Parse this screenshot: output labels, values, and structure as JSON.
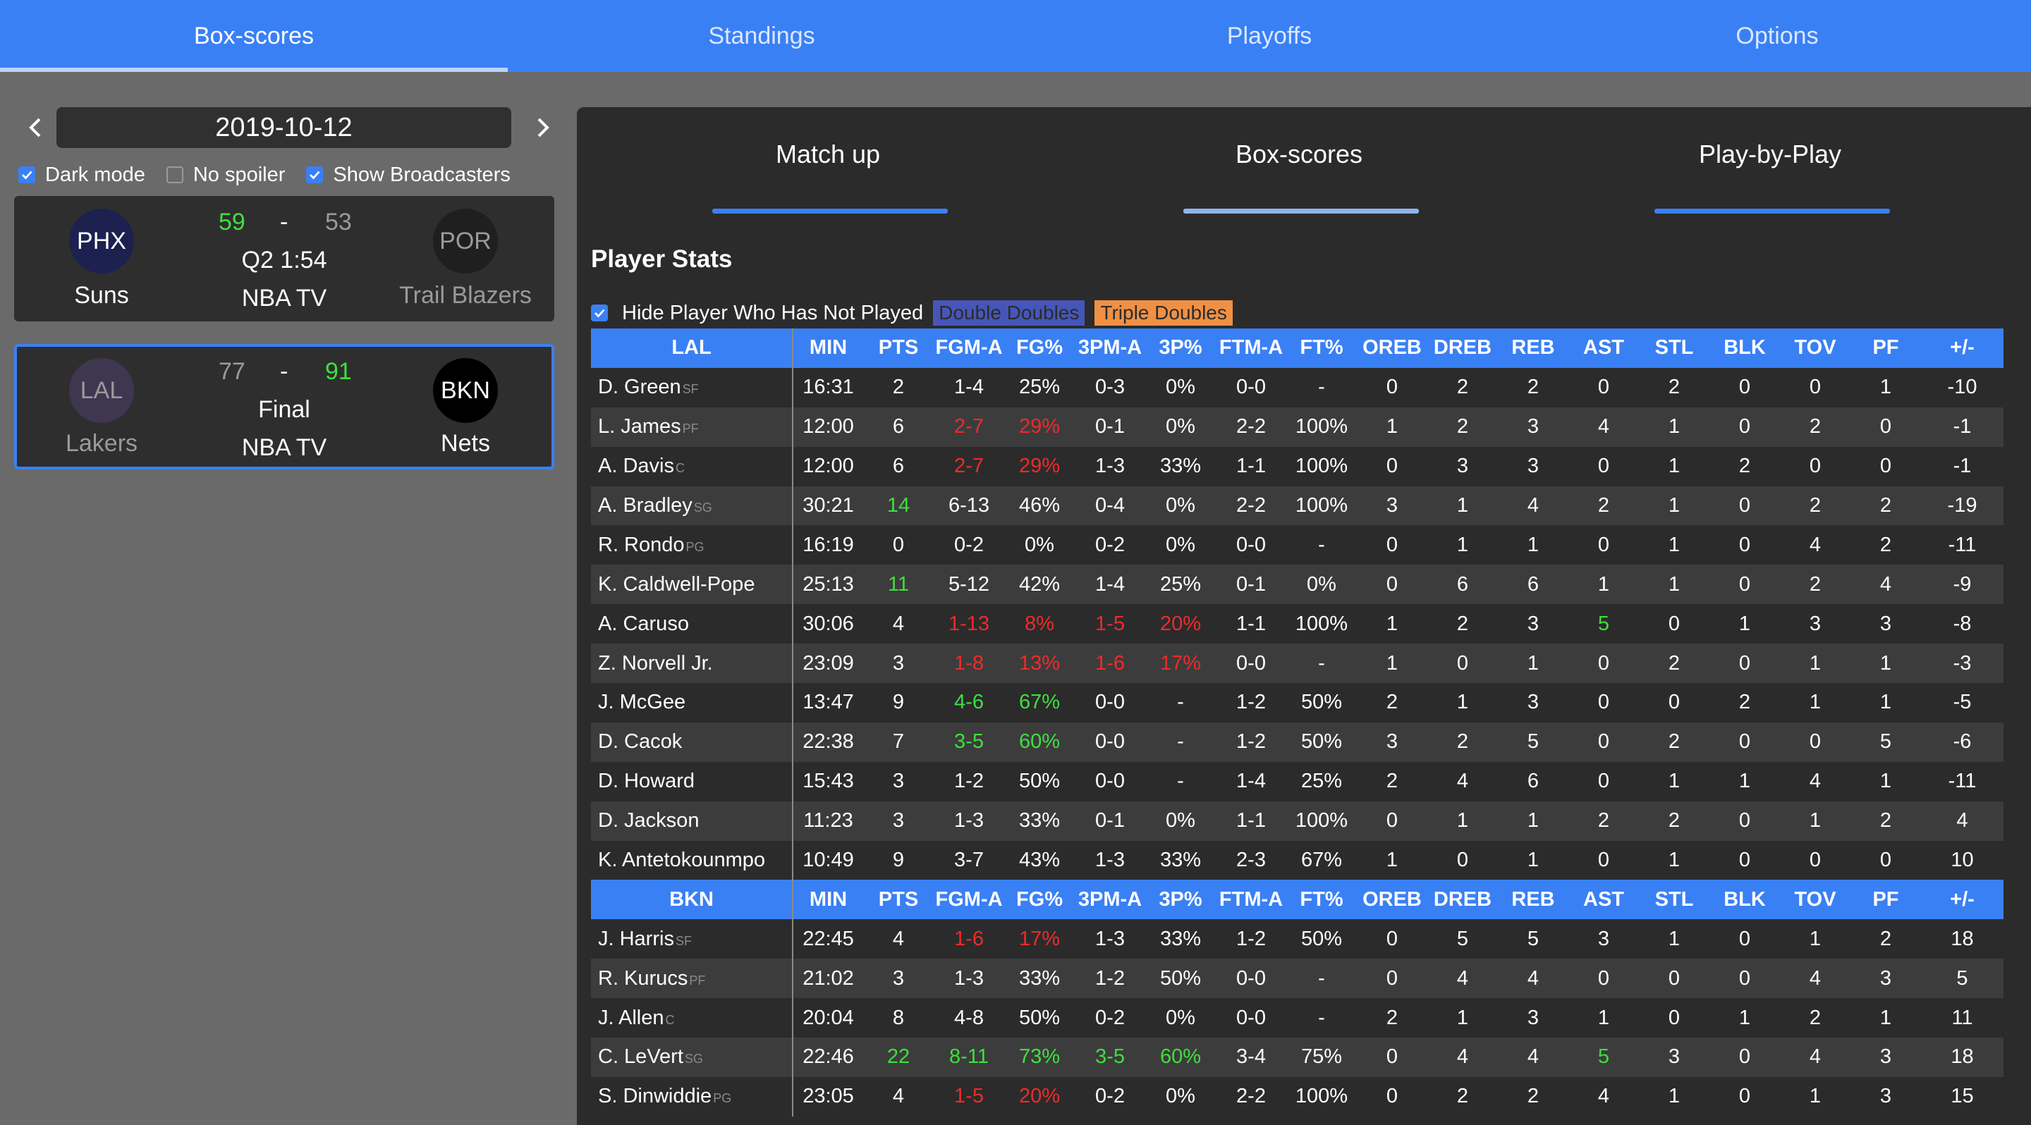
{
  "nav": {
    "tabs": [
      "Box-scores",
      "Standings",
      "Playoffs",
      "Options"
    ],
    "active": 0
  },
  "sidebar": {
    "date": "2019-10-12",
    "options": [
      {
        "label": "Dark mode",
        "checked": true
      },
      {
        "label": "No spoiler",
        "checked": false
      },
      {
        "label": "Show Broadcasters",
        "checked": true
      }
    ],
    "games": [
      {
        "home_abbr": "PHX",
        "home_name": "Suns",
        "home_score": "59",
        "home_logo_color": "#1c2150",
        "away_abbr": "POR",
        "away_name": "Trail Blazers",
        "away_score": "53",
        "away_logo_color": "#1f1f1f",
        "dash": "-",
        "status": "Q2 1:54",
        "broadcaster": "NBA TV",
        "selected": false
      },
      {
        "home_abbr": "LAL",
        "home_name": "Lakers",
        "home_score": "77",
        "home_logo_color": "#3f3650",
        "away_abbr": "BKN",
        "away_name": "Nets",
        "away_score": "91",
        "away_logo_color": "#000000",
        "dash": "-",
        "status": "Final",
        "broadcaster": "NBA TV",
        "selected": true
      }
    ]
  },
  "main": {
    "subtabs": [
      "Match up",
      "Box-scores",
      "Play-by-Play"
    ],
    "active_subtab": 1,
    "section_title": "Player Stats",
    "hide_label": "Hide Player Who Has Not Played",
    "hide_checked": true,
    "legend_double": "Double Doubles",
    "legend_triple": "Triple Doubles",
    "columns": [
      "MIN",
      "PTS",
      "FGM-A",
      "FG%",
      "3PM-A",
      "3P%",
      "FTM-A",
      "FT%",
      "OREB",
      "DREB",
      "REB",
      "AST",
      "STL",
      "BLK",
      "TOV",
      "PF",
      "+/-"
    ],
    "teams": [
      {
        "abbr": "LAL",
        "players": [
          {
            "name": "D. Green",
            "pos": "SF",
            "stats": [
              "16:31",
              "2",
              "1-4",
              "25%",
              "0-3",
              "0%",
              "0-0",
              "-",
              "0",
              "2",
              "2",
              "0",
              "2",
              "0",
              "0",
              "1",
              "-10"
            ],
            "hl": {}
          },
          {
            "name": "L. James",
            "pos": "PF",
            "stats": [
              "12:00",
              "6",
              "2-7",
              "29%",
              "0-1",
              "0%",
              "2-2",
              "100%",
              "1",
              "2",
              "3",
              "4",
              "1",
              "0",
              "2",
              "0",
              "-1"
            ],
            "hl": {
              "2": "r",
              "3": "r"
            }
          },
          {
            "name": "A. Davis",
            "pos": "C",
            "stats": [
              "12:00",
              "6",
              "2-7",
              "29%",
              "1-3",
              "33%",
              "1-1",
              "100%",
              "0",
              "3",
              "3",
              "0",
              "1",
              "2",
              "0",
              "0",
              "-1"
            ],
            "hl": {
              "2": "r",
              "3": "r"
            }
          },
          {
            "name": "A. Bradley",
            "pos": "SG",
            "stats": [
              "30:21",
              "14",
              "6-13",
              "46%",
              "0-4",
              "0%",
              "2-2",
              "100%",
              "3",
              "1",
              "4",
              "2",
              "1",
              "0",
              "2",
              "2",
              "-19"
            ],
            "hl": {
              "1": "g"
            }
          },
          {
            "name": "R. Rondo",
            "pos": "PG",
            "stats": [
              "16:19",
              "0",
              "0-2",
              "0%",
              "0-2",
              "0%",
              "0-0",
              "-",
              "0",
              "1",
              "1",
              "0",
              "1",
              "0",
              "4",
              "2",
              "-11"
            ],
            "hl": {}
          },
          {
            "name": "K. Caldwell-Pope",
            "pos": "",
            "stats": [
              "25:13",
              "11",
              "5-12",
              "42%",
              "1-4",
              "25%",
              "0-1",
              "0%",
              "0",
              "6",
              "6",
              "1",
              "1",
              "0",
              "2",
              "4",
              "-9"
            ],
            "hl": {
              "1": "g"
            }
          },
          {
            "name": "A. Caruso",
            "pos": "",
            "stats": [
              "30:06",
              "4",
              "1-13",
              "8%",
              "1-5",
              "20%",
              "1-1",
              "100%",
              "1",
              "2",
              "3",
              "5",
              "0",
              "1",
              "3",
              "3",
              "-8"
            ],
            "hl": {
              "2": "r",
              "3": "r",
              "4": "r",
              "5": "r",
              "11": "g"
            }
          },
          {
            "name": "Z. Norvell Jr.",
            "pos": "",
            "stats": [
              "23:09",
              "3",
              "1-8",
              "13%",
              "1-6",
              "17%",
              "0-0",
              "-",
              "1",
              "0",
              "1",
              "0",
              "2",
              "0",
              "1",
              "1",
              "-3"
            ],
            "hl": {
              "2": "r",
              "3": "r",
              "4": "r",
              "5": "r"
            }
          },
          {
            "name": "J. McGee",
            "pos": "",
            "stats": [
              "13:47",
              "9",
              "4-6",
              "67%",
              "0-0",
              "-",
              "1-2",
              "50%",
              "2",
              "1",
              "3",
              "0",
              "0",
              "2",
              "1",
              "1",
              "-5"
            ],
            "hl": {
              "2": "g",
              "3": "g"
            }
          },
          {
            "name": "D. Cacok",
            "pos": "",
            "stats": [
              "22:38",
              "7",
              "3-5",
              "60%",
              "0-0",
              "-",
              "1-2",
              "50%",
              "3",
              "2",
              "5",
              "0",
              "2",
              "0",
              "0",
              "5",
              "-6"
            ],
            "hl": {
              "2": "g",
              "3": "g"
            }
          },
          {
            "name": "D. Howard",
            "pos": "",
            "stats": [
              "15:43",
              "3",
              "1-2",
              "50%",
              "0-0",
              "-",
              "1-4",
              "25%",
              "2",
              "4",
              "6",
              "0",
              "1",
              "1",
              "4",
              "1",
              "-11"
            ],
            "hl": {}
          },
          {
            "name": "D. Jackson",
            "pos": "",
            "stats": [
              "11:23",
              "3",
              "1-3",
              "33%",
              "0-1",
              "0%",
              "1-1",
              "100%",
              "0",
              "1",
              "1",
              "2",
              "2",
              "0",
              "1",
              "2",
              "4"
            ],
            "hl": {}
          },
          {
            "name": "K. Antetokounmpo",
            "pos": "",
            "stats": [
              "10:49",
              "9",
              "3-7",
              "43%",
              "1-3",
              "33%",
              "2-3",
              "67%",
              "1",
              "0",
              "1",
              "0",
              "1",
              "0",
              "0",
              "0",
              "10"
            ],
            "hl": {}
          }
        ]
      },
      {
        "abbr": "BKN",
        "players": [
          {
            "name": "J. Harris",
            "pos": "SF",
            "stats": [
              "22:45",
              "4",
              "1-6",
              "17%",
              "1-3",
              "33%",
              "1-2",
              "50%",
              "0",
              "5",
              "5",
              "3",
              "1",
              "0",
              "1",
              "2",
              "18"
            ],
            "hl": {
              "2": "r",
              "3": "r"
            }
          },
          {
            "name": "R. Kurucs",
            "pos": "PF",
            "stats": [
              "21:02",
              "3",
              "1-3",
              "33%",
              "1-2",
              "50%",
              "0-0",
              "-",
              "0",
              "4",
              "4",
              "0",
              "0",
              "0",
              "4",
              "3",
              "5"
            ],
            "hl": {}
          },
          {
            "name": "J. Allen",
            "pos": "C",
            "stats": [
              "20:04",
              "8",
              "4-8",
              "50%",
              "0-2",
              "0%",
              "0-0",
              "-",
              "2",
              "1",
              "3",
              "1",
              "0",
              "1",
              "2",
              "1",
              "11"
            ],
            "hl": {}
          },
          {
            "name": "C. LeVert",
            "pos": "SG",
            "stats": [
              "22:46",
              "22",
              "8-11",
              "73%",
              "3-5",
              "60%",
              "3-4",
              "75%",
              "0",
              "4",
              "4",
              "5",
              "3",
              "0",
              "4",
              "3",
              "18"
            ],
            "hl": {
              "1": "g",
              "2": "g",
              "3": "g",
              "4": "g",
              "5": "g",
              "11": "g"
            }
          },
          {
            "name": "S. Dinwiddie",
            "pos": "PG",
            "stats": [
              "23:05",
              "4",
              "1-5",
              "20%",
              "0-2",
              "0%",
              "2-2",
              "100%",
              "0",
              "2",
              "2",
              "4",
              "1",
              "0",
              "1",
              "3",
              "15"
            ],
            "hl": {
              "2": "r",
              "3": "r"
            }
          }
        ]
      }
    ]
  }
}
